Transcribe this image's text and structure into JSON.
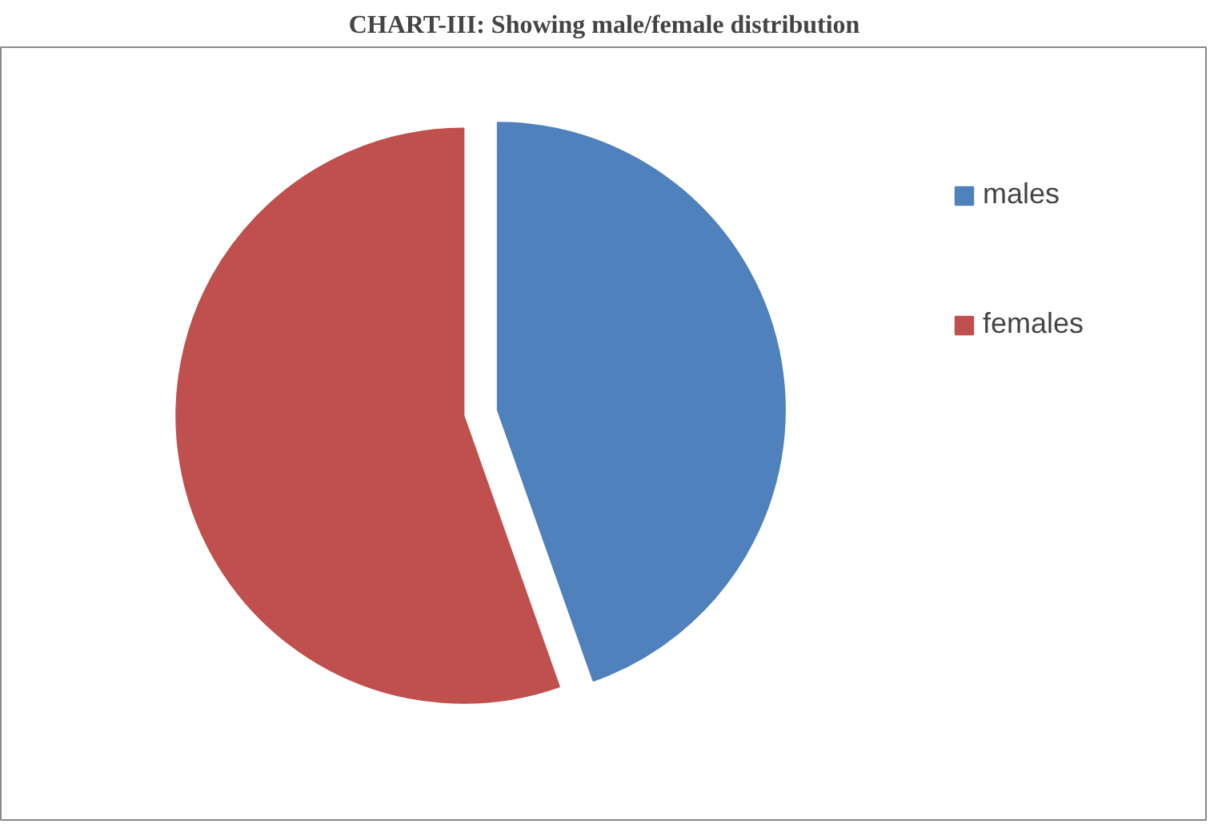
{
  "chart_data": {
    "type": "pie",
    "title": "CHART-III: Showing male/female distribution",
    "categories": [
      "males",
      "females"
    ],
    "values": [
      44.6,
      55.4
    ],
    "colors": [
      "#4f81bd",
      "#c0504d"
    ],
    "legend": "right"
  }
}
